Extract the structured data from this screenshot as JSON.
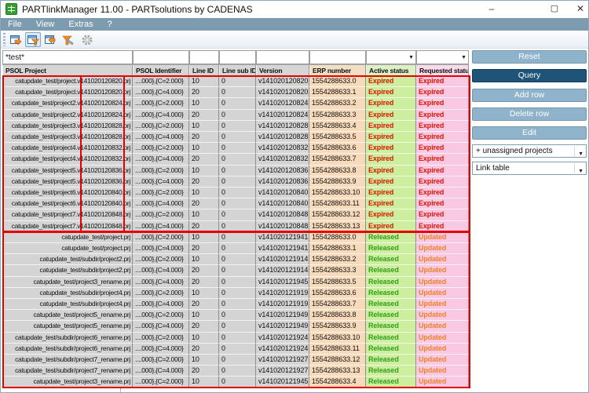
{
  "window": {
    "title": "PARTlinkManager 11.00 - PARTsolutions by CADENAS",
    "controls": {
      "minimize": "–",
      "maximize": "▢",
      "close": "✕"
    }
  },
  "menu": {
    "items": [
      "File",
      "View",
      "Extras",
      "?"
    ]
  },
  "toolbar": {
    "icons": [
      "link-table-window-icon",
      "filter-link-table-icon",
      "open-table-window-icon",
      "clear-filter-icon",
      "settings-gear-icon"
    ]
  },
  "filter": {
    "psol_project": "*test*",
    "psol_identifier": "",
    "line_id": "",
    "line_sub_id": "",
    "version": "",
    "erp_number": "",
    "active_status": "",
    "requested_status": "",
    "dropdown_arrow": "▼"
  },
  "table": {
    "columns": [
      "PSOL Project",
      "PSOL Identifier",
      "Line ID",
      "Line sub ID",
      "Version",
      "ERP number",
      "Active status",
      "Requested status"
    ],
    "rows": [
      [
        "catupdate_test/project.v141020120820.prj",
        "....000},{C=2.000}",
        "10",
        "0",
        "v141020120820",
        "1554288633.0",
        "Expired",
        "Expired"
      ],
      [
        "catupdate_test/project.v141020120820.prj",
        "....000},{C=4.000}",
        "20",
        "0",
        "v141020120820",
        "1554288633.1",
        "Expired",
        "Expired"
      ],
      [
        "catupdate_test/project2.v141020120824.prj",
        "....000},{C=2.000}",
        "10",
        "0",
        "v141020120824",
        "1554288633.2",
        "Expired",
        "Expired"
      ],
      [
        "catupdate_test/project2.v141020120824.prj",
        "....000},{C=4.000}",
        "20",
        "0",
        "v141020120824",
        "1554288633.3",
        "Expired",
        "Expired"
      ],
      [
        "catupdate_test/project3.v141020120828.prj",
        "....000},{C=2.000}",
        "10",
        "0",
        "v141020120828",
        "1554288633.4",
        "Expired",
        "Expired"
      ],
      [
        "catupdate_test/project3.v141020120828.prj",
        "....000},{C=4.000}",
        "20",
        "0",
        "v141020120828",
        "1554288633.5",
        "Expired",
        "Expired"
      ],
      [
        "catupdate_test/project4.v141020120832.prj",
        "....000},{C=2.000}",
        "10",
        "0",
        "v141020120832",
        "1554288633.6",
        "Expired",
        "Expired"
      ],
      [
        "catupdate_test/project4.v141020120832.prj",
        "....000},{C=4.000}",
        "20",
        "0",
        "v141020120832",
        "1554288633.7",
        "Expired",
        "Expired"
      ],
      [
        "catupdate_test/project5.v141020120836.prj",
        "....000},{C=2.000}",
        "10",
        "0",
        "v141020120836",
        "1554288633.8",
        "Expired",
        "Expired"
      ],
      [
        "catupdate_test/project5.v141020120836.prj",
        "....000},{C=4.000}",
        "20",
        "0",
        "v141020120836",
        "1554288633.9",
        "Expired",
        "Expired"
      ],
      [
        "catupdate_test/project6.v141020120840.prj",
        "....000},{C=2.000}",
        "10",
        "0",
        "v141020120840",
        "1554288633.10",
        "Expired",
        "Expired"
      ],
      [
        "catupdate_test/project6.v141020120840.prj",
        "....000},{C=4.000}",
        "20",
        "0",
        "v141020120840",
        "1554288633.11",
        "Expired",
        "Expired"
      ],
      [
        "catupdate_test/project7.v141020120848.prj",
        "....000},{C=2.000}",
        "10",
        "0",
        "v141020120848",
        "1554288633.12",
        "Expired",
        "Expired"
      ],
      [
        "catupdate_test/project7.v141020120848.prj",
        "....000},{C=4.000}",
        "20",
        "0",
        "v141020120848",
        "1554288633.13",
        "Expired",
        "Expired"
      ],
      [
        "catupdate_test/project.prj",
        "....000},{C=2.000}",
        "10",
        "0",
        "v141020121941",
        "1554288633.0",
        "Released",
        "Updated"
      ],
      [
        "catupdate_test/project.prj",
        "....000},{C=4.000}",
        "20",
        "0",
        "v141020121941",
        "1554288633.1",
        "Released",
        "Updated"
      ],
      [
        "catupdate_test/subdir/project2.prj",
        "....000},{C=2.000}",
        "10",
        "0",
        "v141020121914",
        "1554288633.2",
        "Released",
        "Updated"
      ],
      [
        "catupdate_test/subdir/project2.prj",
        "....000},{C=4.000}",
        "20",
        "0",
        "v141020121914",
        "1554288633.3",
        "Released",
        "Updated"
      ],
      [
        "catupdate_test/project3_rename.prj",
        "....000},{C=4.000}",
        "20",
        "0",
        "v141020121945",
        "1554288633.5",
        "Released",
        "Updated"
      ],
      [
        "catupdate_test/subdir/project4.prj",
        "....000},{C=2.000}",
        "10",
        "0",
        "v141020121919",
        "1554288633.6",
        "Released",
        "Updated"
      ],
      [
        "catupdate_test/subdir/project4.prj",
        "....000},{C=4.000}",
        "20",
        "0",
        "v141020121919",
        "1554288633.7",
        "Released",
        "Updated"
      ],
      [
        "catupdate_test/project5_rename.prj",
        "....000},{C=2.000}",
        "10",
        "0",
        "v141020121949",
        "1554288633.8",
        "Released",
        "Updated"
      ],
      [
        "catupdate_test/project5_rename.prj",
        "....000},{C=4.000}",
        "20",
        "0",
        "v141020121949",
        "1554288633.9",
        "Released",
        "Updated"
      ],
      [
        "catupdate_test/subdir/project6_rename.prj",
        "....000},{C=2.000}",
        "10",
        "0",
        "v141020121924",
        "1554288633.10",
        "Released",
        "Updated"
      ],
      [
        "catupdate_test/subdir/project6_rename.prj",
        "....000},{C=4.000}",
        "20",
        "0",
        "v141020121924",
        "1554288633.11",
        "Released",
        "Updated"
      ],
      [
        "catupdate_test/subdir/project7_rename.prj",
        "....000},{C=2.000}",
        "10",
        "0",
        "v141020121927",
        "1554288633.12",
        "Released",
        "Updated"
      ],
      [
        "catupdate_test/subdir/project7_rename.prj",
        "....000},{C=4.000}",
        "20",
        "0",
        "v141020121927",
        "1554288633.13",
        "Released",
        "Updated"
      ],
      [
        "catupdate_test/project3_rename.prj",
        "....000},{C=2.000}",
        "10",
        "0",
        "v141020121945",
        "1554288633.4",
        "Released",
        "Updated"
      ]
    ]
  },
  "actions": {
    "reset": "Reset",
    "query": "Query",
    "add_row": "Add row",
    "delete_row": "Delete row",
    "edit": "Edit"
  },
  "selects": {
    "projects": "+ unassigned projects",
    "table": "Link table"
  },
  "colors": {
    "menu_bar": "#7e9cb0",
    "button": "#8fb3cb",
    "button_primary": "#1d5478",
    "erp_column_bg": "#f7dabb",
    "active_column_bg": "#cdee9f",
    "requested_column_bg": "#f9c9e3",
    "annotation": "#e50000",
    "status": {
      "Expired": "#dd1400",
      "Released": "#2f9e1a",
      "Updated": "#f08228"
    }
  }
}
